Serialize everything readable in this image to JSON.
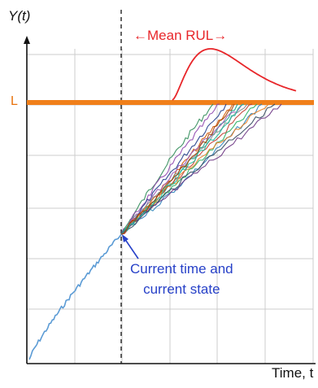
{
  "diagram": {
    "y_axis_label": "Y(t)",
    "x_axis_label": "Time, t",
    "threshold_label": "L",
    "mean_rul_label": "←Mean RUL→",
    "annotation_line1": "Current time and",
    "annotation_line2": "current state"
  },
  "colors": {
    "axis": "#111111",
    "grid": "#cccccc",
    "threshold": "#f07f1a",
    "threshold_text": "#e8720c",
    "pdf_curve": "#e8262a",
    "history": "#5b9bd5",
    "current_time_line": "#222222",
    "annotation": "#2741c8",
    "trajectories": [
      "#2e8b57",
      "#8e44ad",
      "#1f3b8a",
      "#d35400",
      "#16a085",
      "#9b59b6",
      "#7f8c8d",
      "#c0392b",
      "#27ae60",
      "#2980b9",
      "#e67e22",
      "#34495e",
      "#6c3483",
      "#1abc9c",
      "#a04000"
    ]
  }
}
